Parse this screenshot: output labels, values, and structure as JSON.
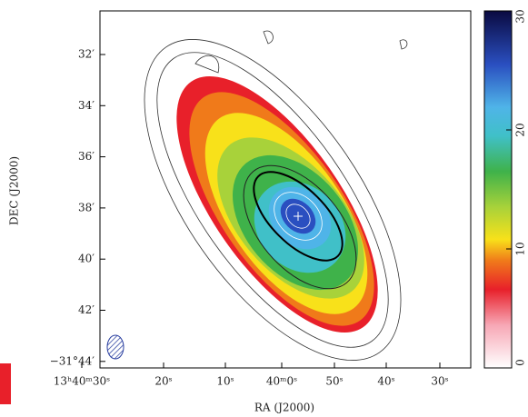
{
  "chart_data": {
    "type": "map",
    "xlabel": "RA (J2000)",
    "ylabel": "DEC (J2000)",
    "xticklabels": [
      "13ʰ40ᵐ30ˢ",
      "20ˢ",
      "10ˢ",
      "40ᵐ0ˢ",
      "50ˢ",
      "40ˢ",
      "30ˢ"
    ],
    "yticklabels": [
      "32′",
      "34′",
      "36′",
      "38′",
      "40′",
      "42′",
      "−31°44′"
    ],
    "colorbar": {
      "lim": [
        0,
        30
      ],
      "ticks": [
        0,
        10,
        20,
        30
      ]
    }
  }
}
